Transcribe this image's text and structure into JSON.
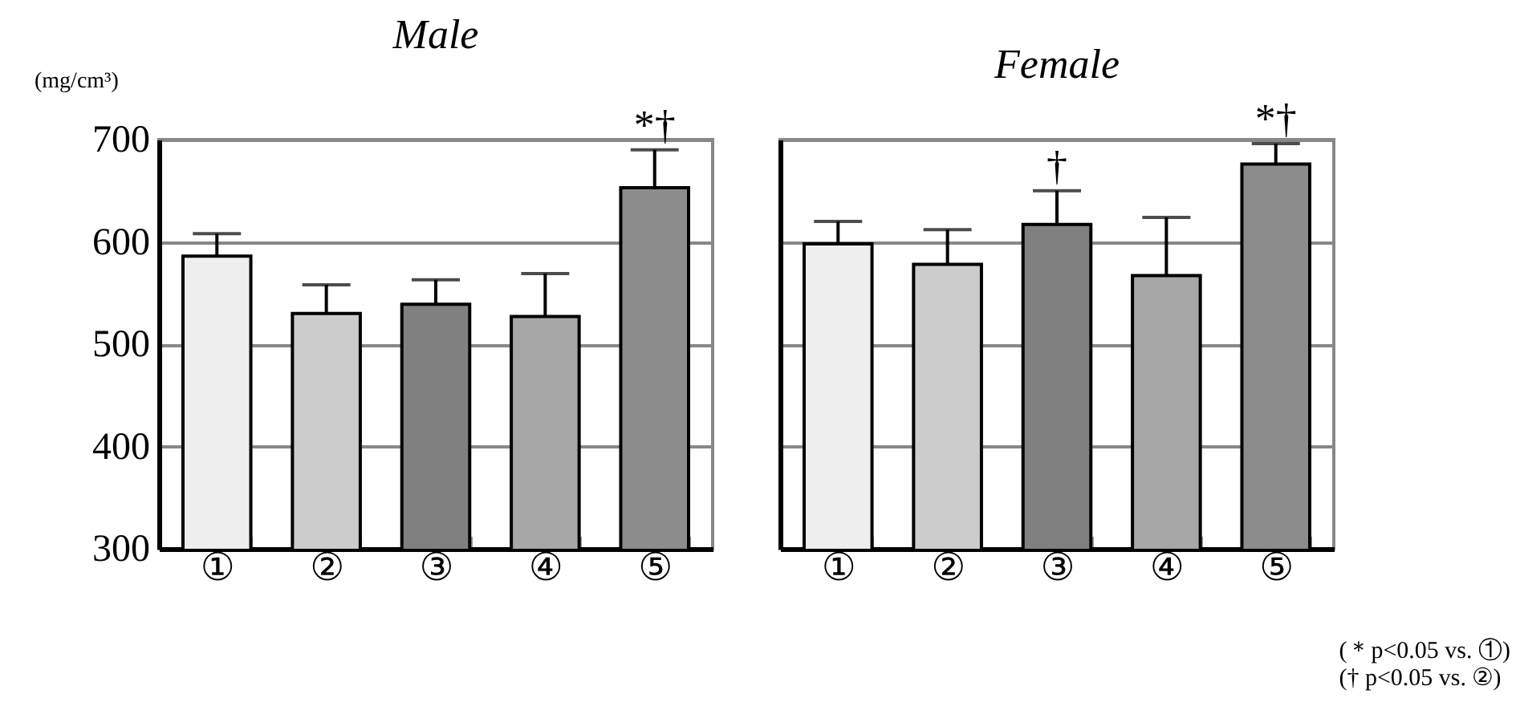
{
  "chart_data": [
    {
      "type": "bar",
      "title": "Male",
      "ylabel": "(mg/cm³)",
      "categories": [
        "①",
        "②",
        "③",
        "④",
        "⑤"
      ],
      "values": [
        586,
        530,
        539,
        527,
        653
      ],
      "errors": [
        [
          586,
          608
        ],
        [
          530,
          558
        ],
        [
          539,
          563
        ],
        [
          527,
          569
        ],
        [
          653,
          690
        ]
      ],
      "colors": [
        "#eeeeee",
        "#cccccc",
        "#808080",
        "#a6a6a6",
        "#8c8c8c"
      ],
      "ylim": [
        300,
        700
      ],
      "yticks": [
        300,
        400,
        500,
        600,
        700
      ],
      "grid": "y",
      "annotations": [
        {
          "text": "*†",
          "x": "⑤",
          "y": 690
        }
      ]
    },
    {
      "type": "bar",
      "title": "Female",
      "categories": [
        "①",
        "②",
        "③",
        "④",
        "⑤"
      ],
      "values": [
        598,
        578,
        617,
        567,
        676
      ],
      "errors": [
        [
          598,
          620
        ],
        [
          578,
          612
        ],
        [
          617,
          650
        ],
        [
          567,
          624
        ],
        [
          676,
          696
        ]
      ],
      "colors": [
        "#eeeeee",
        "#cccccc",
        "#808080",
        "#a6a6a6",
        "#8c8c8c"
      ],
      "ylim": [
        300,
        700
      ],
      "yticks": [
        300,
        400,
        500,
        600,
        700
      ],
      "grid": "y",
      "tick_labels": "x",
      "annotations": [
        {
          "text": "†",
          "x": "③",
          "y": 650
        },
        {
          "text": "*†",
          "x": "⑤",
          "y": 696
        },
        "(＊p<0.05 vs. ①)",
        "(†  p<0.05 vs. ②)"
      ]
    }
  ]
}
